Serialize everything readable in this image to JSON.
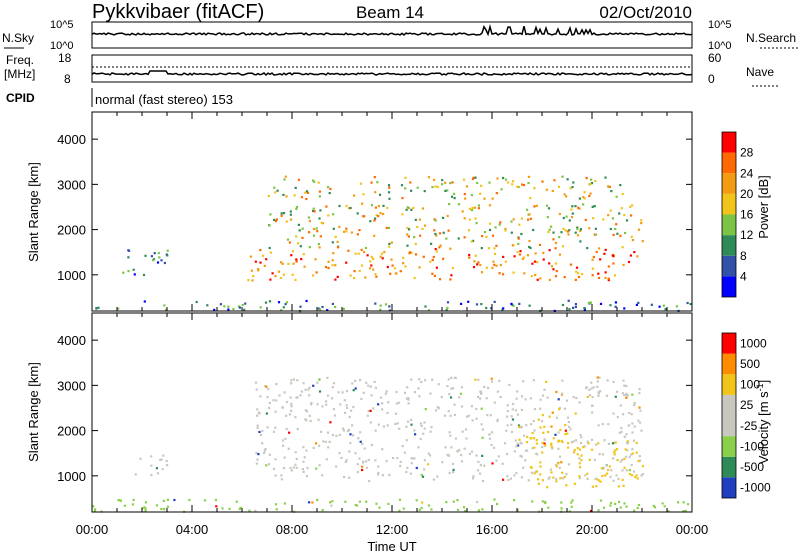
{
  "header": {
    "station": "Pykkvibaer (fitACF)",
    "beam": "Beam 14",
    "date": "02/Oct/2010"
  },
  "noise_panel": {
    "left_label": "N.Sky",
    "right_label": "N.Search",
    "left_ticks": [
      "10^5",
      "10^0"
    ],
    "right_ticks": [
      "10^5",
      "10^0"
    ]
  },
  "freq_panel": {
    "left_label_line1": "Freq.",
    "left_label_line2": "[MHz]",
    "right_label": "Nave",
    "left_ticks": [
      "18",
      "8"
    ],
    "right_ticks": [
      "60",
      "0"
    ]
  },
  "cpid": {
    "label": "CPID",
    "text": "normal (fast stereo) 153"
  },
  "chart_data": [
    {
      "type": "heatmap",
      "quantity": "Power",
      "xlabel": "Time UT",
      "ylabel": "Slant Range [km]",
      "xlim_hours": [
        0,
        24
      ],
      "ylim_km": [
        200,
        4600
      ],
      "x_ticks": [
        "00:00",
        "04:00",
        "08:00",
        "12:00",
        "16:00",
        "20:00",
        "00:00"
      ],
      "y_ticks": [
        1000,
        2000,
        3000,
        4000
      ],
      "colorbar": {
        "label": "Power [dB]",
        "ticks": [
          4,
          8,
          12,
          16,
          20,
          24,
          28
        ],
        "colors": [
          "#0000ff",
          "#3152a8",
          "#2e8b57",
          "#7cc544",
          "#f0c419",
          "#f39c12",
          "#ff6a00",
          "#ff0000"
        ]
      },
      "regions": [
        {
          "t0": 0.0,
          "t1": 24.0,
          "r0": 220,
          "r1": 450,
          "level": "low",
          "note": "near-range noise"
        },
        {
          "t0": 1.2,
          "t1": 3.0,
          "r0": 1000,
          "r1": 1700,
          "level": "low"
        },
        {
          "t0": 6.2,
          "t1": 21.8,
          "r0": 900,
          "r1": 1600,
          "level": "high"
        },
        {
          "t0": 7.0,
          "t1": 22.0,
          "r0": 1600,
          "r1": 2600,
          "level": "medium"
        },
        {
          "t0": 7.0,
          "t1": 21.5,
          "r0": 2700,
          "r1": 3200,
          "level": "medium"
        }
      ]
    },
    {
      "type": "heatmap",
      "quantity": "Velocity",
      "xlabel": "Time UT",
      "ylabel": "Slant Range [km]",
      "xlim_hours": [
        0,
        24
      ],
      "ylim_km": [
        200,
        4600
      ],
      "x_ticks": [
        "00:00",
        "04:00",
        "08:00",
        "12:00",
        "16:00",
        "20:00",
        "00:00"
      ],
      "y_ticks": [
        1000,
        2000,
        3000,
        4000
      ],
      "colorbar": {
        "label": "Velocity [m s",
        "label_sup": "-1",
        "label_end": "]",
        "ticks": [
          "1000",
          "500",
          "100",
          "25",
          "-25",
          "-100",
          "-500",
          "-1000"
        ],
        "colors": [
          "#2040c0",
          "#2e8b57",
          "#8ad04a",
          "#c8c8c0",
          "#c8c8c0",
          "#f0c419",
          "#ff8c00",
          "#ff0000"
        ]
      },
      "regions": [
        {
          "t0": 0.0,
          "t1": 24.0,
          "r0": 220,
          "r1": 500,
          "level": "ground",
          "color": "#8ad04a"
        },
        {
          "t0": 1.5,
          "t1": 3.0,
          "r0": 1000,
          "r1": 1500,
          "level": "slow",
          "color": "#c8c8c0"
        },
        {
          "t0": 6.5,
          "t1": 22.0,
          "r0": 900,
          "r1": 3200,
          "level": "slow",
          "color": "#c8c8c0"
        },
        {
          "t0": 17.0,
          "t1": 19.0,
          "r0": 1700,
          "r1": 2500,
          "level": "away",
          "color": "#f0c419"
        },
        {
          "t0": 17.5,
          "t1": 22.0,
          "r0": 700,
          "r1": 1800,
          "level": "away",
          "color": "#f0c419"
        }
      ]
    }
  ]
}
